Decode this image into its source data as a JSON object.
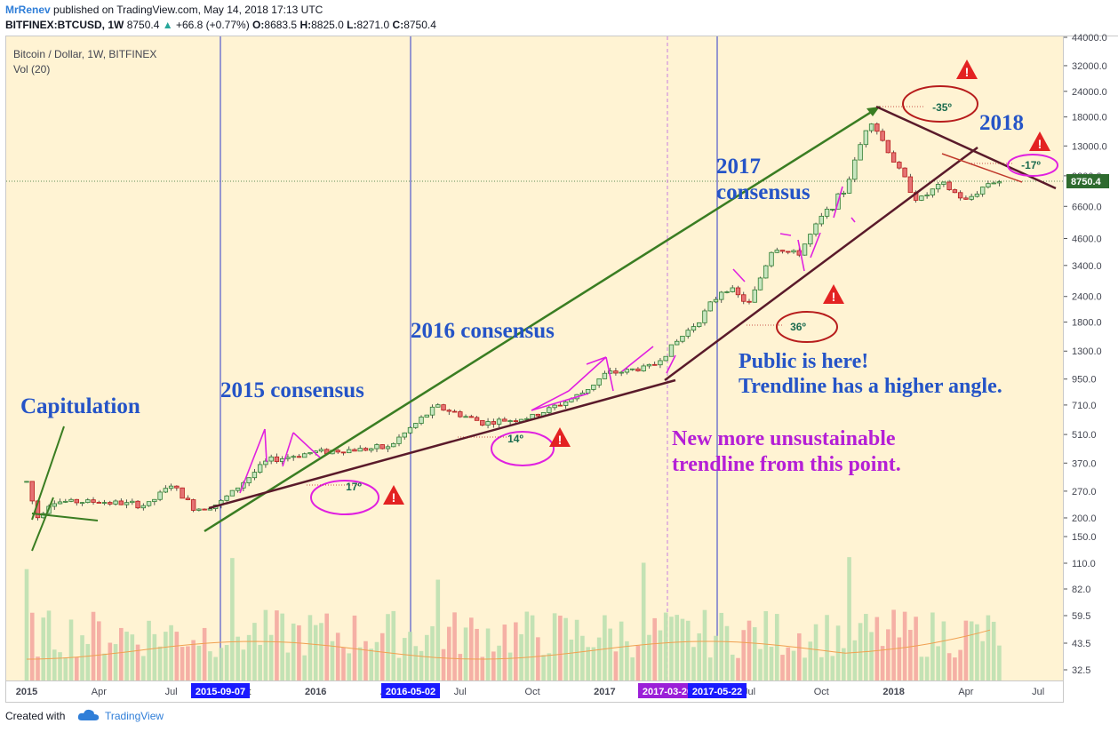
{
  "header": {
    "author": "MrRenev",
    "published": "published on TradingView.com, May 14, 2018 17:13 UTC",
    "symbol": "BITFINEX:BTCUSD, 1W",
    "last": "8750.4",
    "change_arrow": "▲",
    "change": "+66.8 (+0.77%)",
    "o_label": "O:",
    "o": "8683.5",
    "h_label": "H:",
    "h": "8825.0",
    "l_label": "L:",
    "l": "8271.0",
    "c_label": "C:",
    "c": "8750.4"
  },
  "legend": {
    "title": "Bitcoin / Dollar, 1W, BITFINEX",
    "volume": "Vol (20)"
  },
  "footer": {
    "created_with": "Created with",
    "brand": "TradingView",
    "logo_icon": "cloud-icon"
  },
  "colors": {
    "background": "#fff3d3",
    "up": "#2e7d32",
    "down": "#b71c1c",
    "vol_up": "#bde0b0",
    "vol_down": "#f4a9a0",
    "vertical_line": "#2c3acb",
    "green_trend": "#3a7d22",
    "dark_trend": "#5a1a2a",
    "magenta": "#e020e0",
    "annotation_blue": "#2554c7",
    "annotation_purple": "#b51fd6"
  },
  "chart_data": {
    "type": "candlestick",
    "title": "Bitcoin / Dollar, 1W, BITFINEX",
    "y_scale": "log",
    "y_ticks": [
      44000,
      32000,
      24000,
      18000,
      13000,
      9300,
      6600,
      4600,
      3400,
      2400,
      1800,
      1300,
      950,
      710,
      510,
      370,
      270,
      200,
      150,
      110,
      82,
      59.5,
      43.5,
      32.5
    ],
    "y_tick_labels": [
      "44000.0",
      "32000.0",
      "24000.0",
      "18000.0",
      "13000.0",
      "9300.0",
      "6600.0",
      "4600.0",
      "3400.0",
      "2400.0",
      "1800.0",
      "1300.0",
      "950.0",
      "710.0",
      "510.0",
      "370.0",
      "270.0",
      "200.0",
      "150.0",
      "110.0",
      "82.0",
      "59.5",
      "43.5",
      "32.5"
    ],
    "last_price_label": "8750.4",
    "x_tick_labels": [
      "2015",
      "Apr",
      "Jul",
      "Oct",
      "2016",
      "Apr",
      "Jul",
      "Oct",
      "2017",
      "Apr",
      "Jul",
      "Oct",
      "2018",
      "Apr",
      "Jul"
    ],
    "highlighted_dates": [
      "2015-09-07",
      "2016-05-02",
      "2017-03-20",
      "2017-05-22"
    ],
    "approx_close_path": [
      [
        "2015-01",
        300
      ],
      [
        "2015-01-14",
        200
      ],
      [
        "2015-02",
        240
      ],
      [
        "2015-04",
        240
      ],
      [
        "2015-06",
        230
      ],
      [
        "2015-07",
        290
      ],
      [
        "2015-08",
        220
      ],
      [
        "2015-09",
        235
      ],
      [
        "2015-11",
        380
      ],
      [
        "2016-01",
        420
      ],
      [
        "2016-04",
        440
      ],
      [
        "2016-06",
        700
      ],
      [
        "2016-08",
        580
      ],
      [
        "2016-10",
        620
      ],
      [
        "2016-12",
        800
      ],
      [
        "2017-01",
        1000
      ],
      [
        "2017-03",
        1100
      ],
      [
        "2017-05",
        1900
      ],
      [
        "2017-06",
        2700
      ],
      [
        "2017-07",
        2200
      ],
      [
        "2017-08",
        4200
      ],
      [
        "2017-09",
        3800
      ],
      [
        "2017-10",
        5800
      ],
      [
        "2017-11",
        8000
      ],
      [
        "2017-12",
        18000
      ],
      [
        "2018-01",
        11000
      ],
      [
        "2018-02",
        7000
      ],
      [
        "2018-03",
        8500
      ],
      [
        "2018-04",
        7000
      ],
      [
        "2018-05",
        8750
      ]
    ],
    "annotations": [
      {
        "text": "Capitulation",
        "color": "#2554c7"
      },
      {
        "text": "2015 consensus",
        "color": "#2554c7"
      },
      {
        "text": "2016 consensus",
        "color": "#2554c7"
      },
      {
        "text": "2017",
        "color": "#2554c7"
      },
      {
        "text": "consensus",
        "color": "#2554c7"
      },
      {
        "text": "2018",
        "color": "#2554c7"
      },
      {
        "text": "Public is here!",
        "color": "#2554c7"
      },
      {
        "text": "Trendline has a higher angle.",
        "color": "#2554c7"
      },
      {
        "text": "New more unsustainable",
        "color": "#b51fd6"
      },
      {
        "text": "trendline from this point.",
        "color": "#b51fd6"
      }
    ],
    "angle_labels": [
      "17º",
      "14º",
      "36º",
      "-35º",
      "-17º"
    ],
    "warning_icons": 5
  }
}
